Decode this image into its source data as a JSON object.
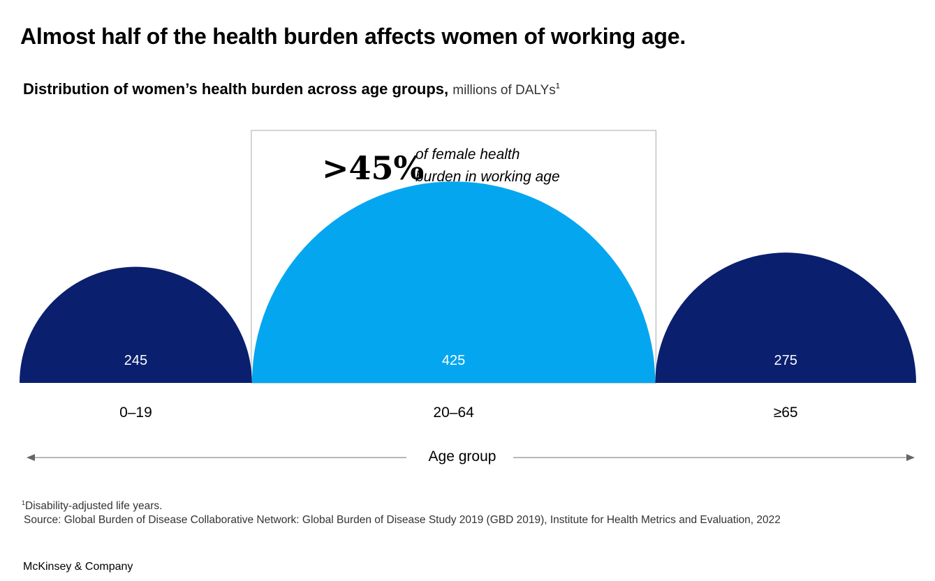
{
  "header": {
    "title": "Almost half of the health burden affects women of working age.",
    "subtitle_bold": "Distribution of women’s health burden across age groups,",
    "subtitle_unit": "millions of DALYs",
    "subtitle_note_marker": "1"
  },
  "chart_data": {
    "type": "semicircle-area",
    "categories": [
      "0–19",
      "20–64",
      "≥65"
    ],
    "values": [
      245,
      425,
      275
    ],
    "value_labels": [
      "245",
      "425",
      "275"
    ],
    "unit": "millions of DALYs",
    "xlabel": "Age group",
    "highlight_index": 1,
    "annotation": {
      "big": ">45%",
      "line1": "of female health",
      "line2": "burden in working age"
    },
    "colors": {
      "default": "#0a1f6e",
      "highlight": "#05a6f0",
      "label_text": "#ffffff",
      "axis": "#8a8a8a",
      "box_border": "#aaaaaa"
    }
  },
  "footer": {
    "note_marker": "1",
    "note_text": "Disability-adjusted life years.",
    "source": "Source: Global Burden of Disease Collaborative Network: Global Burden of Disease Study 2019 (GBD 2019), Institute for Health Metrics and Evaluation, 2022",
    "brand": "McKinsey & Company"
  }
}
